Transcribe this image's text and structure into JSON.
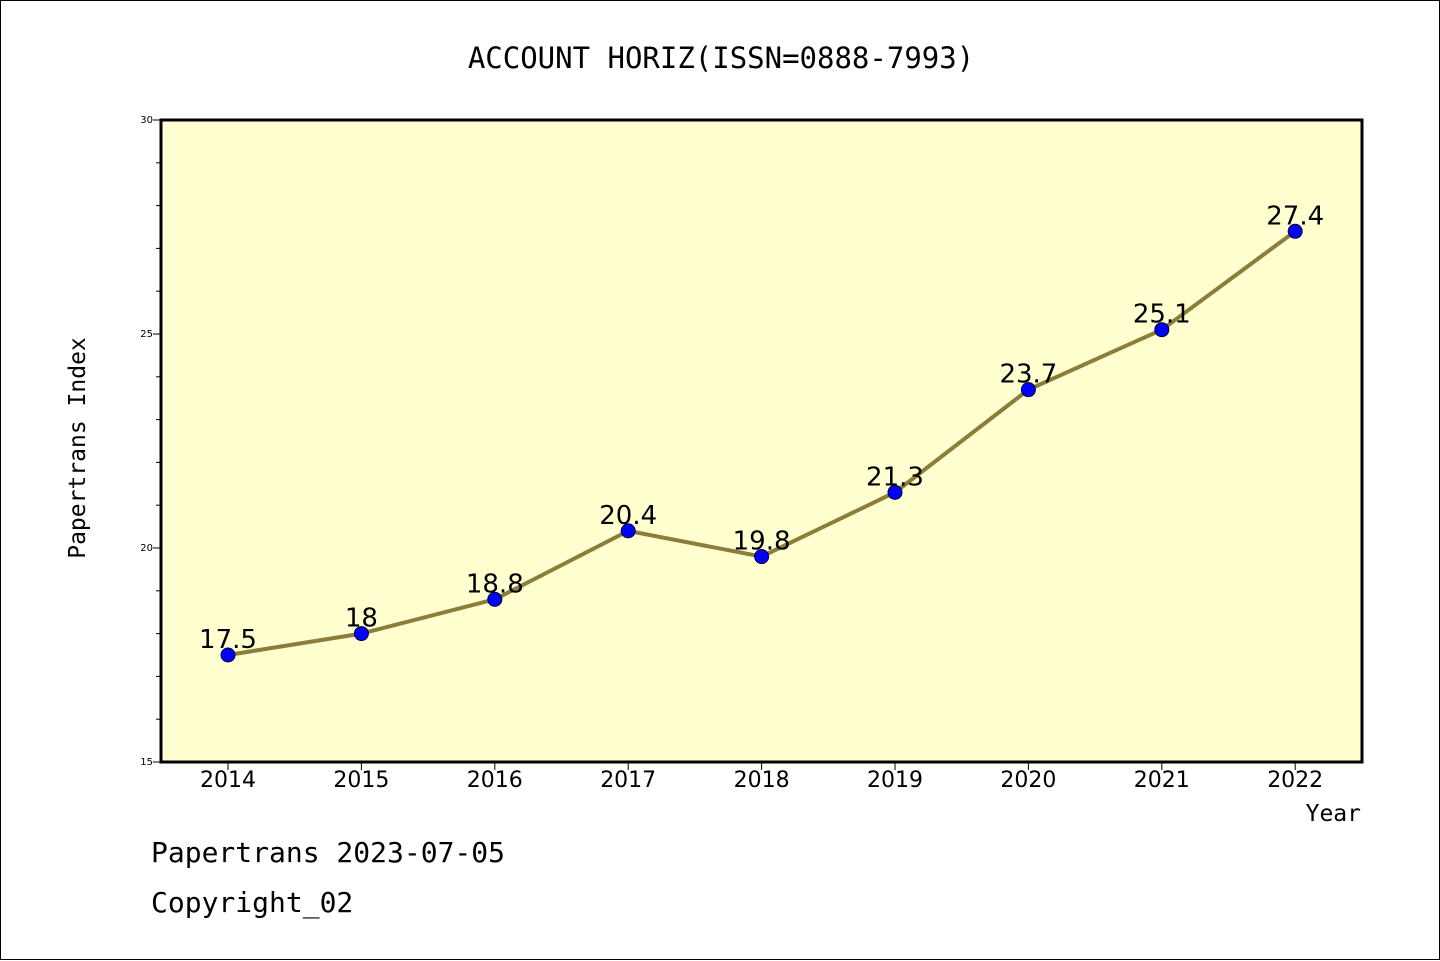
{
  "chart_data": {
    "type": "line",
    "title": "ACCOUNT HORIZ(ISSN=0888-7993)",
    "xlabel": "Year",
    "ylabel": "Papertrans Index",
    "x": [
      "2014",
      "2015",
      "2016",
      "2017",
      "2018",
      "2019",
      "2020",
      "2021",
      "2022"
    ],
    "series": [
      {
        "values": [
          17.5,
          18,
          18.8,
          20.4,
          19.8,
          21.3,
          23.7,
          25.1,
          27.4
        ],
        "data_labels": [
          "17.5",
          "18",
          "18.8",
          "20.4",
          "19.8",
          "21.3",
          "23.7",
          "25.1",
          "27.4"
        ]
      }
    ],
    "ylim": [
      15,
      30
    ],
    "yticks": [
      "15",
      "20",
      "25",
      "30"
    ],
    "grid": false,
    "legend": "none",
    "colors": {
      "plot_background": "#FFFFD0",
      "line": "#8B7D3A",
      "marker": "#0000FF"
    }
  },
  "footer": {
    "date_line": "Papertrans 2023-07-05",
    "copyright": "Copyright_02"
  }
}
